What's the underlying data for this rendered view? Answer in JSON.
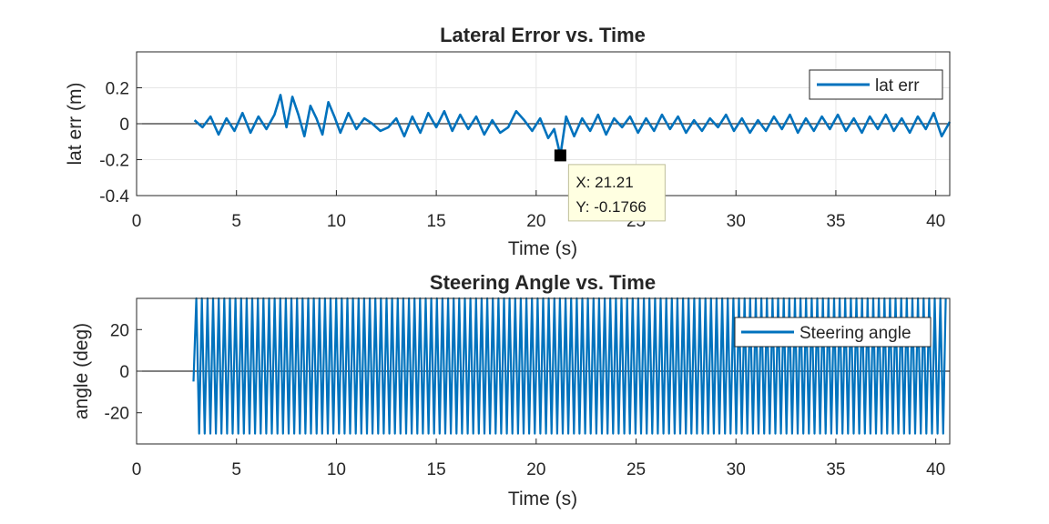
{
  "chart_data": [
    {
      "type": "line",
      "title": "Lateral Error vs. Time",
      "xlabel": "Time (s)",
      "ylabel": "lat err (m)",
      "xlim": [
        0,
        40.7
      ],
      "ylim": [
        -0.4,
        0.4
      ],
      "xticks": [
        0,
        5,
        10,
        15,
        20,
        25,
        30,
        35,
        40
      ],
      "yticks": [
        -0.4,
        -0.2,
        0,
        0.2
      ],
      "ytick_labels": [
        "-0.4",
        "-0.2",
        "0",
        "0.2"
      ],
      "grid": true,
      "zero_line": true,
      "legend_position": "top-right",
      "series": [
        {
          "name": "lat err",
          "color": "#0072BD",
          "x": [
            2.9,
            3.3,
            3.7,
            4.1,
            4.5,
            4.9,
            5.3,
            5.7,
            6.1,
            6.5,
            6.9,
            7.2,
            7.5,
            7.8,
            8.1,
            8.4,
            8.7,
            9.0,
            9.3,
            9.6,
            9.9,
            10.2,
            10.6,
            11.0,
            11.4,
            11.8,
            12.2,
            12.6,
            13.0,
            13.4,
            13.8,
            14.2,
            14.6,
            15.0,
            15.4,
            15.8,
            16.2,
            16.6,
            17.0,
            17.4,
            17.8,
            18.2,
            18.6,
            19.0,
            19.4,
            19.8,
            20.2,
            20.6,
            20.9,
            21.21,
            21.5,
            21.9,
            22.3,
            22.7,
            23.1,
            23.5,
            23.9,
            24.3,
            24.7,
            25.1,
            25.5,
            25.9,
            26.3,
            26.7,
            27.1,
            27.5,
            27.9,
            28.3,
            28.7,
            29.1,
            29.5,
            29.9,
            30.3,
            30.7,
            31.1,
            31.5,
            31.9,
            32.3,
            32.7,
            33.1,
            33.5,
            33.9,
            34.3,
            34.7,
            35.1,
            35.5,
            35.9,
            36.3,
            36.7,
            37.1,
            37.5,
            37.9,
            38.3,
            38.7,
            39.1,
            39.5,
            39.9,
            40.3,
            40.7
          ],
          "y": [
            0.02,
            -0.02,
            0.04,
            -0.06,
            0.03,
            -0.04,
            0.06,
            -0.05,
            0.04,
            -0.03,
            0.05,
            0.16,
            -0.02,
            0.15,
            0.05,
            -0.07,
            0.1,
            0.03,
            -0.06,
            0.12,
            0.04,
            -0.05,
            0.06,
            -0.03,
            0.03,
            0.0,
            -0.04,
            -0.02,
            0.03,
            -0.07,
            0.04,
            -0.05,
            0.06,
            -0.02,
            0.07,
            -0.04,
            0.05,
            -0.03,
            0.04,
            -0.06,
            0.02,
            -0.05,
            -0.02,
            0.07,
            0.02,
            -0.04,
            0.03,
            -0.08,
            -0.03,
            -0.1766,
            0.04,
            -0.07,
            0.03,
            -0.04,
            0.05,
            -0.06,
            0.03,
            -0.02,
            0.04,
            -0.05,
            0.03,
            -0.04,
            0.05,
            -0.03,
            0.04,
            -0.05,
            0.02,
            -0.04,
            0.03,
            -0.02,
            0.05,
            -0.04,
            0.03,
            -0.05,
            0.02,
            -0.04,
            0.04,
            -0.03,
            0.05,
            -0.05,
            0.03,
            -0.04,
            0.04,
            -0.03,
            0.05,
            -0.04,
            0.03,
            -0.05,
            0.04,
            -0.03,
            0.05,
            -0.04,
            0.03,
            -0.05,
            0.04,
            -0.03,
            0.06,
            -0.07,
            0.01
          ]
        }
      ],
      "datatip": {
        "x": 21.21,
        "y": -0.1766,
        "x_text": "X: 21.21",
        "y_text": "Y: -0.1766"
      }
    },
    {
      "type": "line",
      "title": "Steering Angle vs. Time",
      "xlabel": "Time (s)",
      "ylabel": "angle (deg)",
      "xlim": [
        0,
        40.7
      ],
      "ylim": [
        -35,
        35
      ],
      "xticks": [
        0,
        5,
        10,
        15,
        20,
        25,
        30,
        35,
        40
      ],
      "yticks": [
        -20,
        0,
        20
      ],
      "ytick_labels": [
        "-20",
        "0",
        "20"
      ],
      "grid": false,
      "zero_line": true,
      "legend_position": "top-right",
      "series": [
        {
          "name": "Steering angle",
          "color": "#0072BD",
          "t_start": 2.85,
          "t_end": 40.5,
          "max": 35,
          "min": -30,
          "oscillation_period_s": 0.28
        }
      ]
    }
  ]
}
